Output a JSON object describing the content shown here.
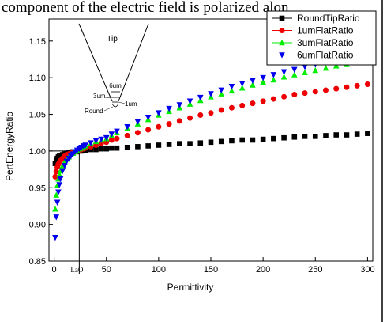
{
  "page": {
    "header_text": "component of the electric field is polarized alon"
  },
  "chart_data": {
    "type": "scatter",
    "title": "",
    "xlabel": "Permittivity",
    "ylabel": "PertEnergyRatio",
    "xlim": [
      -5,
      305
    ],
    "ylim": [
      0.85,
      1.18
    ],
    "x_ticks": [
      0,
      50,
      100,
      150,
      200,
      250,
      300
    ],
    "y_ticks": [
      0.85,
      0.9,
      0.95,
      1.0,
      1.05,
      1.1,
      1.15
    ],
    "grid": false,
    "legend_position": "top-right",
    "reference_line": {
      "x": 24,
      "y": 1.0,
      "x_label": "LaO"
    },
    "series": [
      {
        "name": "RoundTipRatio",
        "marker": "square",
        "color": "#000000",
        "x": [
          1,
          2,
          3,
          4,
          5,
          6,
          8,
          10,
          12,
          14,
          16,
          18,
          20,
          22,
          24,
          26,
          28,
          30,
          35,
          40,
          45,
          50,
          55,
          60,
          70,
          80,
          90,
          100,
          110,
          120,
          130,
          140,
          150,
          160,
          170,
          180,
          190,
          200,
          210,
          220,
          230,
          240,
          250,
          260,
          270,
          280,
          290,
          300
        ],
        "y": [
          0.983,
          0.987,
          0.99,
          0.992,
          0.993,
          0.994,
          0.995,
          0.996,
          0.997,
          0.998,
          0.998,
          0.999,
          0.999,
          0.999,
          1.0,
          1.0,
          1.001,
          1.001,
          1.002,
          1.002,
          1.003,
          1.003,
          1.004,
          1.004,
          1.005,
          1.006,
          1.007,
          1.008,
          1.009,
          1.01,
          1.01,
          1.011,
          1.012,
          1.013,
          1.014,
          1.015,
          1.015,
          1.016,
          1.017,
          1.018,
          1.019,
          1.02,
          1.02,
          1.021,
          1.022,
          1.022,
          1.023,
          1.024
        ]
      },
      {
        "name": "1umFlatRatio",
        "marker": "circle",
        "color": "#ee0000",
        "x": [
          1,
          2,
          3,
          4,
          5,
          6,
          8,
          10,
          12,
          14,
          16,
          18,
          20,
          22,
          24,
          26,
          28,
          30,
          35,
          40,
          45,
          50,
          55,
          60,
          70,
          80,
          90,
          100,
          110,
          120,
          130,
          140,
          150,
          160,
          170,
          180,
          190,
          200,
          210,
          220,
          230,
          240,
          250,
          260,
          270,
          280,
          290,
          300
        ],
        "y": [
          0.965,
          0.972,
          0.978,
          0.982,
          0.985,
          0.987,
          0.99,
          0.993,
          0.995,
          0.996,
          0.997,
          0.998,
          0.999,
          1.0,
          1.001,
          1.002,
          1.003,
          1.004,
          1.006,
          1.008,
          1.01,
          1.012,
          1.015,
          1.017,
          1.021,
          1.025,
          1.029,
          1.033,
          1.037,
          1.041,
          1.045,
          1.049,
          1.052,
          1.056,
          1.059,
          1.062,
          1.065,
          1.068,
          1.071,
          1.074,
          1.077,
          1.079,
          1.081,
          1.083,
          1.085,
          1.087,
          1.089,
          1.091
        ]
      },
      {
        "name": "3umFlatRatio",
        "marker": "triangle-up",
        "color": "#00ee00",
        "x": [
          1,
          2,
          3,
          4,
          5,
          6,
          8,
          10,
          12,
          14,
          16,
          18,
          20,
          22,
          24,
          26,
          28,
          30,
          35,
          40,
          45,
          50,
          55,
          60,
          70,
          80,
          90,
          100,
          110,
          120,
          130,
          140,
          150,
          160,
          170,
          180,
          190,
          200,
          210,
          220,
          230,
          240,
          250,
          260,
          270,
          280,
          290,
          300
        ],
        "y": [
          0.921,
          0.94,
          0.953,
          0.962,
          0.968,
          0.973,
          0.98,
          0.985,
          0.989,
          0.992,
          0.995,
          0.997,
          0.999,
          1.001,
          1.003,
          1.004,
          1.006,
          1.007,
          1.01,
          1.013,
          1.015,
          1.017,
          1.021,
          1.025,
          1.031,
          1.037,
          1.043,
          1.049,
          1.054,
          1.059,
          1.064,
          1.069,
          1.074,
          1.078,
          1.082,
          1.086,
          1.09,
          1.094,
          1.097,
          1.101,
          1.104,
          1.107,
          1.11,
          1.113,
          1.116,
          1.118,
          1.121,
          1.123
        ]
      },
      {
        "name": "6umFlatRatio",
        "marker": "triangle-down",
        "color": "#0000ee",
        "x": [
          1,
          2,
          3,
          4,
          5,
          6,
          8,
          10,
          12,
          14,
          16,
          18,
          20,
          22,
          24,
          26,
          28,
          30,
          35,
          40,
          45,
          50,
          55,
          60,
          70,
          80,
          90,
          100,
          110,
          120,
          130,
          140,
          150,
          160,
          170,
          180,
          190,
          200,
          210,
          220,
          230,
          240,
          250,
          260,
          270,
          280,
          290,
          300
        ],
        "y": [
          0.882,
          0.91,
          0.93,
          0.944,
          0.954,
          0.962,
          0.973,
          0.98,
          0.986,
          0.99,
          0.993,
          0.996,
          0.999,
          1.001,
          1.003,
          1.005,
          1.007,
          1.008,
          1.011,
          1.014,
          1.016,
          1.018,
          1.023,
          1.027,
          1.033,
          1.04,
          1.046,
          1.052,
          1.058,
          1.063,
          1.068,
          1.073,
          1.078,
          1.083,
          1.088,
          1.092,
          1.096,
          1.1,
          1.104,
          1.108,
          1.111,
          1.115,
          1.118,
          1.121,
          1.124,
          1.127,
          1.129,
          1.131
        ]
      }
    ]
  },
  "inset": {
    "title": "Tip",
    "labels": [
      "6um",
      "3um",
      "1um",
      "Round"
    ]
  }
}
